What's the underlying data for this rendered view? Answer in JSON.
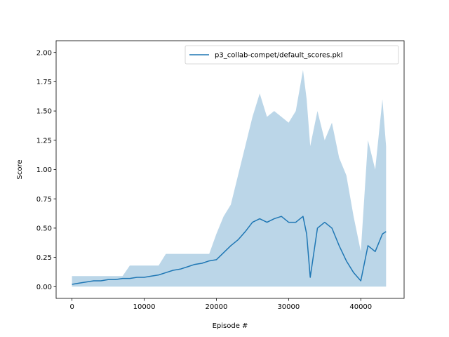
{
  "chart_data": {
    "type": "line",
    "xlabel": "Episode #",
    "ylabel": "Score",
    "xlim": [
      -2200,
      46000
    ],
    "ylim": [
      -0.1,
      2.1
    ],
    "x_ticks": [
      0,
      10000,
      20000,
      30000,
      40000
    ],
    "x_tick_labels": [
      "0",
      "10000",
      "20000",
      "30000",
      "40000"
    ],
    "y_ticks": [
      0.0,
      0.25,
      0.5,
      0.75,
      1.0,
      1.25,
      1.5,
      1.75,
      2.0
    ],
    "y_tick_labels": [
      "0.00",
      "0.25",
      "0.50",
      "0.75",
      "1.00",
      "1.25",
      "1.50",
      "1.75",
      "2.00"
    ],
    "grid": false,
    "legend_position": "top-right",
    "series": [
      {
        "name": "p3_collab-compet/default_scores.pkl",
        "color": "#1f77b4",
        "band_color": "#1f77b4",
        "x": [
          0,
          1000,
          2000,
          3000,
          4000,
          5000,
          6000,
          7000,
          8000,
          9000,
          10000,
          11000,
          12000,
          13000,
          14000,
          15000,
          16000,
          17000,
          18000,
          19000,
          20000,
          21000,
          22000,
          23000,
          24000,
          25000,
          26000,
          27000,
          28000,
          29000,
          30000,
          31000,
          32000,
          32500,
          33000,
          34000,
          35000,
          36000,
          37000,
          38000,
          39000,
          40000,
          41000,
          42000,
          43000,
          43500
        ],
        "mean": [
          0.02,
          0.03,
          0.04,
          0.05,
          0.05,
          0.06,
          0.06,
          0.07,
          0.07,
          0.08,
          0.08,
          0.09,
          0.1,
          0.12,
          0.14,
          0.15,
          0.17,
          0.19,
          0.2,
          0.22,
          0.23,
          0.29,
          0.35,
          0.4,
          0.47,
          0.55,
          0.58,
          0.55,
          0.58,
          0.6,
          0.55,
          0.55,
          0.6,
          0.45,
          0.08,
          0.5,
          0.55,
          0.5,
          0.35,
          0.22,
          0.12,
          0.05,
          0.35,
          0.3,
          0.45,
          0.47
        ],
        "upper": [
          0.09,
          0.09,
          0.09,
          0.09,
          0.09,
          0.09,
          0.09,
          0.09,
          0.18,
          0.18,
          0.18,
          0.18,
          0.18,
          0.28,
          0.28,
          0.28,
          0.28,
          0.28,
          0.28,
          0.28,
          0.45,
          0.6,
          0.7,
          0.95,
          1.2,
          1.45,
          1.65,
          1.45,
          1.5,
          1.45,
          1.4,
          1.5,
          1.85,
          1.6,
          1.2,
          1.5,
          1.25,
          1.4,
          1.1,
          0.95,
          0.6,
          0.3,
          1.25,
          1.0,
          1.6,
          1.2
        ],
        "lower": [
          0.0,
          0.0,
          0.0,
          0.0,
          0.0,
          0.0,
          0.0,
          0.0,
          0.0,
          0.0,
          0.0,
          0.0,
          0.0,
          0.0,
          0.0,
          0.0,
          0.0,
          0.0,
          0.0,
          0.0,
          0.0,
          0.0,
          0.0,
          0.0,
          0.0,
          0.0,
          0.0,
          0.0,
          0.0,
          0.0,
          0.0,
          0.0,
          0.0,
          0.0,
          0.0,
          0.0,
          0.0,
          0.0,
          0.0,
          0.0,
          0.0,
          0.0,
          0.0,
          0.0,
          0.0,
          0.0
        ]
      }
    ]
  }
}
